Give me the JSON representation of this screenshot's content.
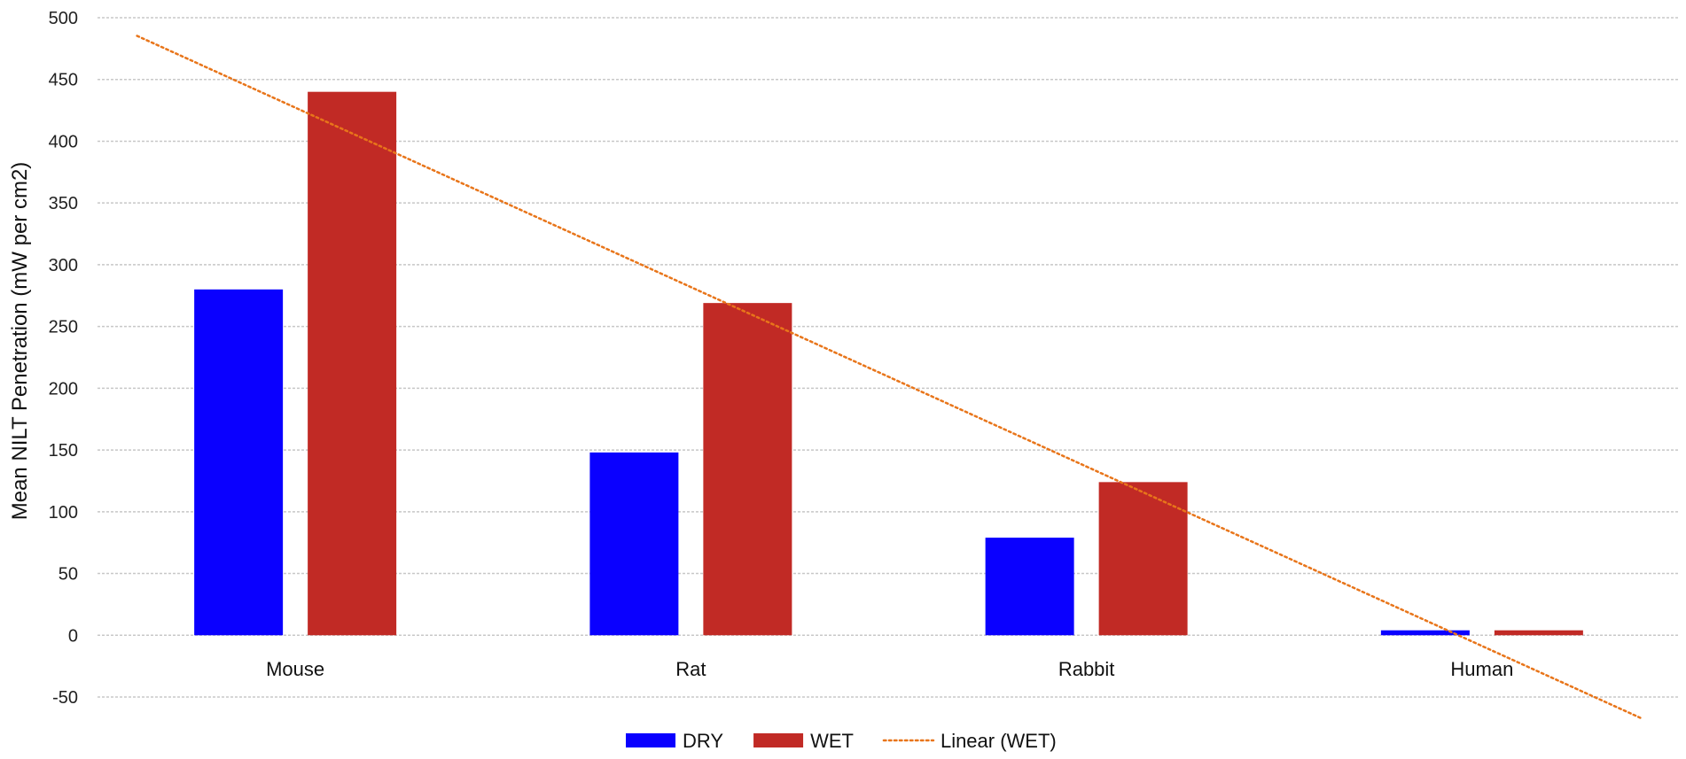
{
  "chart_data": {
    "type": "bar",
    "title": "",
    "xlabel": "",
    "ylabel": "Mean NILT Penetration (mW per cm2)",
    "ylim": [
      -50,
      500
    ],
    "yticks": [
      -50,
      0,
      50,
      100,
      150,
      200,
      250,
      300,
      350,
      400,
      450,
      500
    ],
    "grid": true,
    "legend_position": "bottom-center",
    "categories": [
      "Mouse",
      "Rat",
      "Rabbit",
      "Human"
    ],
    "series": [
      {
        "name": "DRY",
        "color": "#0a00ff",
        "values": [
          280,
          148,
          79,
          4
        ]
      },
      {
        "name": "WET",
        "color": "#c12a25",
        "values": [
          440,
          269,
          124,
          4
        ]
      }
    ],
    "trendline": {
      "name": "Linear (WET)",
      "type": "linear",
      "series": "WET",
      "color": "#e8751a",
      "style": "dotted"
    }
  }
}
